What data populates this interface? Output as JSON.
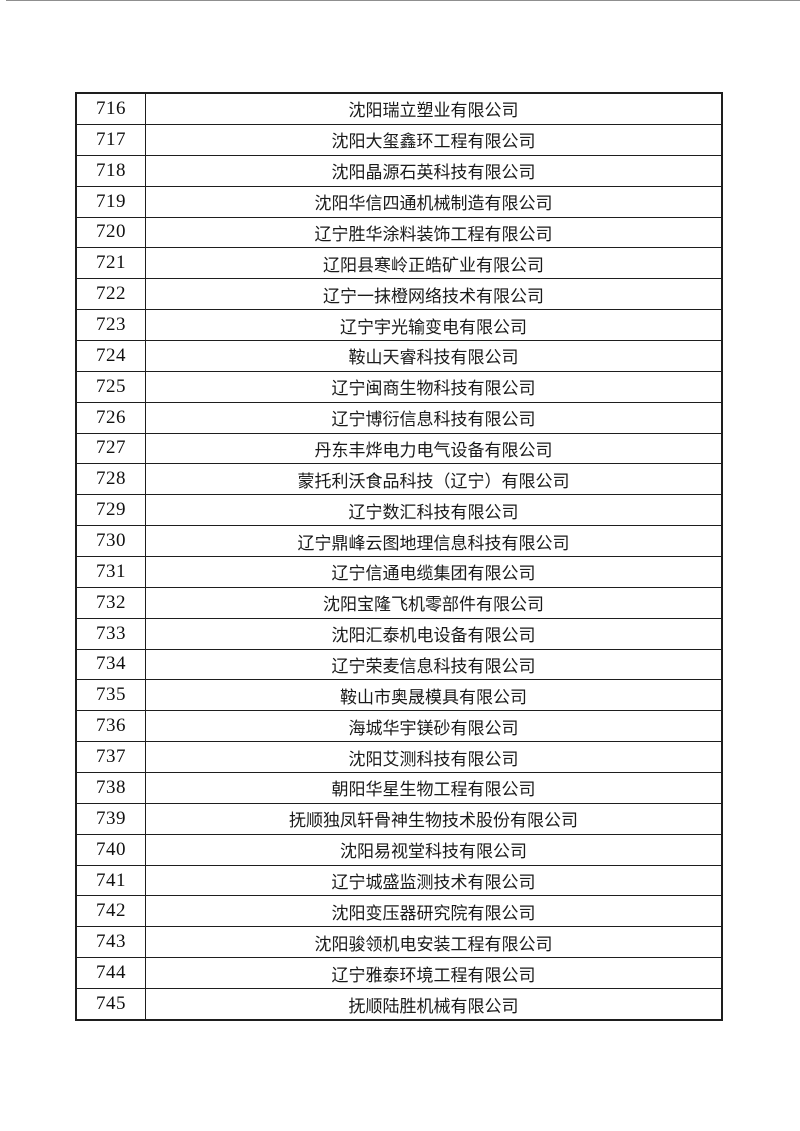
{
  "page": {
    "background_color": "#ffffff",
    "table_border_color": "#1e1e1e",
    "text_color": "#1a1a1a",
    "row_range_start": "716",
    "row_range_end": "745"
  },
  "table": {
    "rows": [
      {
        "no": "716",
        "name": "沈阳瑞立塑业有限公司"
      },
      {
        "no": "717",
        "name": "沈阳大玺鑫环工程有限公司"
      },
      {
        "no": "718",
        "name": "沈阳晶源石英科技有限公司"
      },
      {
        "no": "719",
        "name": "沈阳华信四通机械制造有限公司"
      },
      {
        "no": "720",
        "name": "辽宁胜华涂料装饰工程有限公司"
      },
      {
        "no": "721",
        "name": "辽阳县寒岭正皓矿业有限公司"
      },
      {
        "no": "722",
        "name": "辽宁一抹橙网络技术有限公司"
      },
      {
        "no": "723",
        "name": "辽宁宇光输变电有限公司"
      },
      {
        "no": "724",
        "name": "鞍山天睿科技有限公司"
      },
      {
        "no": "725",
        "name": "辽宁闽商生物科技有限公司"
      },
      {
        "no": "726",
        "name": "辽宁博衍信息科技有限公司"
      },
      {
        "no": "727",
        "name": "丹东丰烨电力电气设备有限公司"
      },
      {
        "no": "728",
        "name": "蒙托利沃食品科技（辽宁）有限公司"
      },
      {
        "no": "729",
        "name": "辽宁数汇科技有限公司"
      },
      {
        "no": "730",
        "name": "辽宁鼎峰云图地理信息科技有限公司"
      },
      {
        "no": "731",
        "name": "辽宁信通电缆集团有限公司"
      },
      {
        "no": "732",
        "name": "沈阳宝隆飞机零部件有限公司"
      },
      {
        "no": "733",
        "name": "沈阳汇泰机电设备有限公司"
      },
      {
        "no": "734",
        "name": "辽宁荣麦信息科技有限公司"
      },
      {
        "no": "735",
        "name": "鞍山市奥晟模具有限公司"
      },
      {
        "no": "736",
        "name": "海城华宇镁砂有限公司"
      },
      {
        "no": "737",
        "name": "沈阳艾测科技有限公司"
      },
      {
        "no": "738",
        "name": "朝阳华星生物工程有限公司"
      },
      {
        "no": "739",
        "name": "抚顺独凤轩骨神生物技术股份有限公司"
      },
      {
        "no": "740",
        "name": "沈阳易视堂科技有限公司"
      },
      {
        "no": "741",
        "name": "辽宁城盛监测技术有限公司"
      },
      {
        "no": "742",
        "name": "沈阳变压器研究院有限公司"
      },
      {
        "no": "743",
        "name": "沈阳骏领机电安装工程有限公司"
      },
      {
        "no": "744",
        "name": "辽宁雅泰环境工程有限公司"
      },
      {
        "no": "745",
        "name": "抚顺陆胜机械有限公司"
      }
    ]
  }
}
